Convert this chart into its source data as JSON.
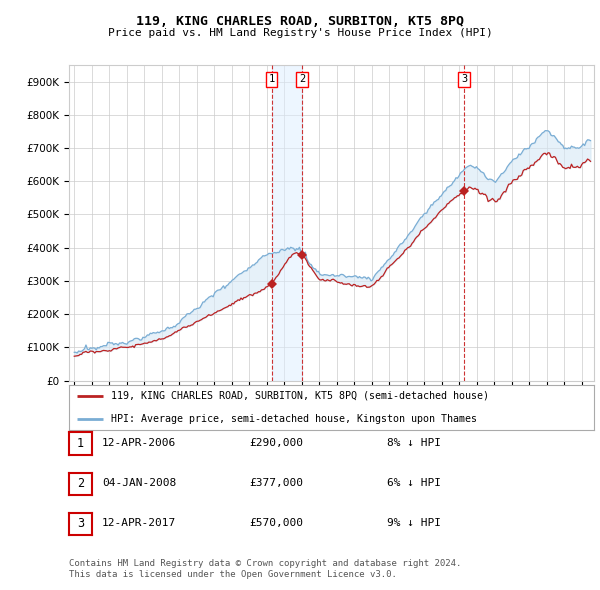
{
  "title": "119, KING CHARLES ROAD, SURBITON, KT5 8PQ",
  "subtitle": "Price paid vs. HM Land Registry's House Price Index (HPI)",
  "legend_line1": "119, KING CHARLES ROAD, SURBITON, KT5 8PQ (semi-detached house)",
  "legend_line2": "HPI: Average price, semi-detached house, Kingston upon Thames",
  "transactions": [
    {
      "num": 1,
      "date": "12-APR-2006",
      "price": 290000,
      "pct": "8%",
      "dir": "↓",
      "year": 2006.28
    },
    {
      "num": 2,
      "date": "04-JAN-2008",
      "price": 377000,
      "pct": "6%",
      "dir": "↓",
      "year": 2008.01
    },
    {
      "num": 3,
      "date": "12-APR-2017",
      "price": 570000,
      "pct": "9%",
      "dir": "↓",
      "year": 2017.28
    }
  ],
  "footnote1": "Contains HM Land Registry data © Crown copyright and database right 2024.",
  "footnote2": "This data is licensed under the Open Government Licence v3.0.",
  "ylim": [
    0,
    950000
  ],
  "yticks": [
    0,
    100000,
    200000,
    300000,
    400000,
    500000,
    600000,
    700000,
    800000,
    900000
  ],
  "background_color": "#ffffff",
  "grid_color": "#cccccc",
  "hpi_color": "#7aadd4",
  "hpi_fill_color": "#d6e8f5",
  "price_color": "#bb2222",
  "dashed_color": "#cc3333",
  "highlight_color": "#ddeeff"
}
